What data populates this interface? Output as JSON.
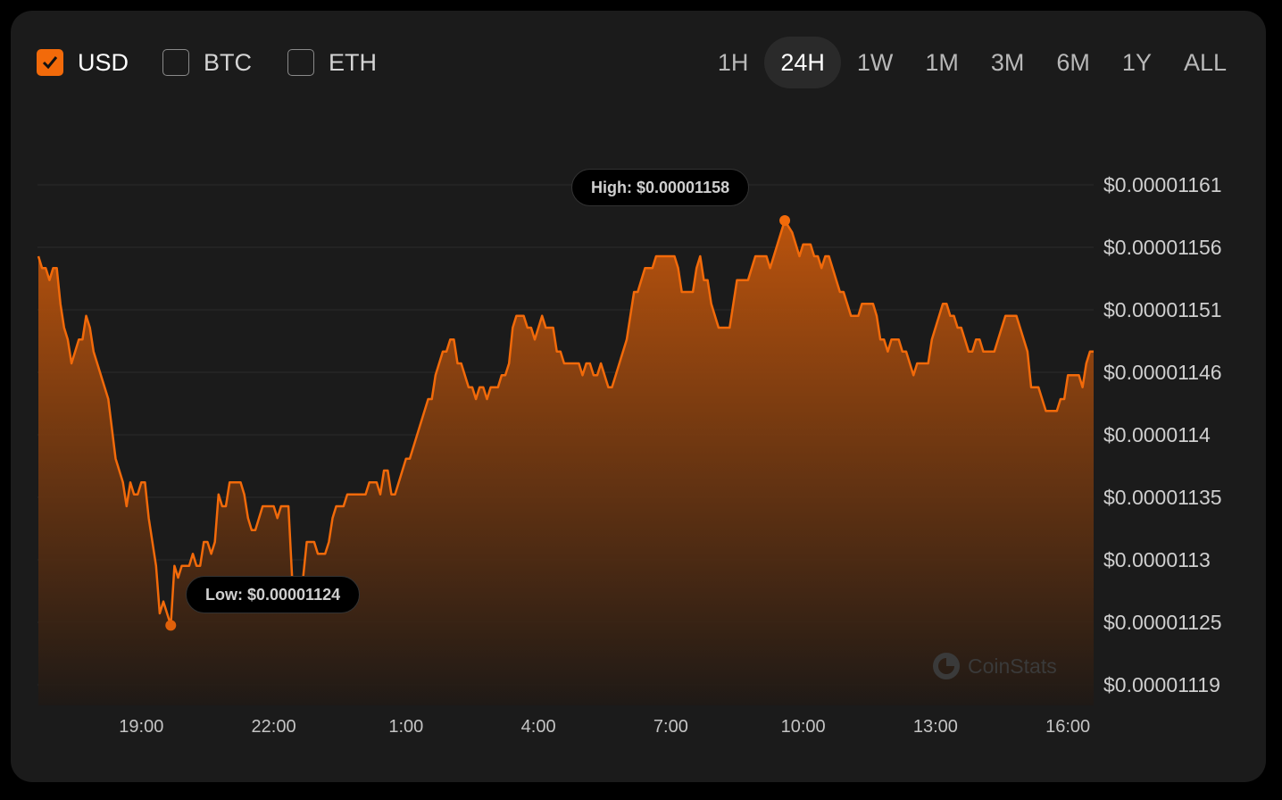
{
  "currencies": [
    {
      "label": "USD",
      "checked": true
    },
    {
      "label": "BTC",
      "checked": false
    },
    {
      "label": "ETH",
      "checked": false
    }
  ],
  "ranges": [
    {
      "label": "1H"
    },
    {
      "label": "24H",
      "active": true
    },
    {
      "label": "1W"
    },
    {
      "label": "1M"
    },
    {
      "label": "3M"
    },
    {
      "label": "6M"
    },
    {
      "label": "1Y"
    },
    {
      "label": "ALL"
    }
  ],
  "colors": {
    "accent": "#f26a0a",
    "background": "#1b1b1b",
    "page": "#000000"
  },
  "watermark": "CoinStats",
  "chart_data": {
    "type": "area",
    "ylim": [
      1.119e-05,
      1.161e-05
    ],
    "y_ticks": [
      "$0.00001161",
      "$0.00001156",
      "$0.00001151",
      "$0.00001146",
      "$0.0000114",
      "$0.00001135",
      "$0.0000113",
      "$0.00001125",
      "$0.00001119"
    ],
    "x_ticks": [
      "19:00",
      "22:00",
      "1:00",
      "4:00",
      "7:00",
      "10:00",
      "13:00",
      "16:00"
    ],
    "grid": true,
    "high": {
      "label": "High: $0.00001158",
      "time": "9:35",
      "value": 1.158e-05
    },
    "low": {
      "label": "Low: $0.00001124",
      "time": "19:40",
      "value": 1.124e-05
    },
    "series": [
      {
        "points": [
          [
            "16:40",
            1.155e-05
          ],
          [
            "16:45",
            1.154e-05
          ],
          [
            "16:50",
            1.154e-05
          ],
          [
            "16:55",
            1.153e-05
          ],
          [
            "17:00",
            1.154e-05
          ],
          [
            "17:05",
            1.154e-05
          ],
          [
            "17:10",
            1.151e-05
          ],
          [
            "17:15",
            1.149e-05
          ],
          [
            "17:20",
            1.148e-05
          ],
          [
            "17:25",
            1.146e-05
          ],
          [
            "17:35",
            1.148e-05
          ],
          [
            "17:40",
            1.148e-05
          ],
          [
            "17:45",
            1.15e-05
          ],
          [
            "17:50",
            1.149e-05
          ],
          [
            "17:55",
            1.147e-05
          ],
          [
            "18:15",
            1.143e-05
          ],
          [
            "18:25",
            1.138e-05
          ],
          [
            "18:35",
            1.136e-05
          ],
          [
            "18:40",
            1.134e-05
          ],
          [
            "18:45",
            1.136e-05
          ],
          [
            "18:50",
            1.135e-05
          ],
          [
            "18:55",
            1.135e-05
          ],
          [
            "19:00",
            1.136e-05
          ],
          [
            "19:05",
            1.136e-05
          ],
          [
            "19:10",
            1.133e-05
          ],
          [
            "19:20",
            1.129e-05
          ],
          [
            "19:25",
            1.125e-05
          ],
          [
            "19:30",
            1.126e-05
          ],
          [
            "19:40",
            1.124e-05
          ],
          [
            "19:45",
            1.129e-05
          ],
          [
            "19:50",
            1.128e-05
          ],
          [
            "19:55",
            1.129e-05
          ],
          [
            "20:05",
            1.129e-05
          ],
          [
            "20:10",
            1.13e-05
          ],
          [
            "20:15",
            1.129e-05
          ],
          [
            "20:20",
            1.129e-05
          ],
          [
            "20:25",
            1.131e-05
          ],
          [
            "20:30",
            1.131e-05
          ],
          [
            "20:35",
            1.13e-05
          ],
          [
            "20:40",
            1.131e-05
          ],
          [
            "20:45",
            1.135e-05
          ],
          [
            "20:50",
            1.134e-05
          ],
          [
            "20:55",
            1.134e-05
          ],
          [
            "21:00",
            1.136e-05
          ],
          [
            "21:15",
            1.136e-05
          ],
          [
            "21:20",
            1.135e-05
          ],
          [
            "21:25",
            1.133e-05
          ],
          [
            "21:30",
            1.132e-05
          ],
          [
            "21:35",
            1.132e-05
          ],
          [
            "21:45",
            1.134e-05
          ],
          [
            "22:00",
            1.134e-05
          ],
          [
            "22:05",
            1.133e-05
          ],
          [
            "22:10",
            1.134e-05
          ],
          [
            "22:20",
            1.134e-05
          ],
          [
            "22:25",
            1.128e-05
          ],
          [
            "22:40",
            1.128e-05
          ],
          [
            "22:45",
            1.131e-05
          ],
          [
            "22:55",
            1.131e-05
          ],
          [
            "23:00",
            1.13e-05
          ],
          [
            "23:10",
            1.13e-05
          ],
          [
            "23:15",
            1.131e-05
          ],
          [
            "23:20",
            1.133e-05
          ],
          [
            "23:25",
            1.134e-05
          ],
          [
            "23:35",
            1.134e-05
          ],
          [
            "23:40",
            1.135e-05
          ],
          [
            "0:05",
            1.135e-05
          ],
          [
            "0:10",
            1.136e-05
          ],
          [
            "0:20",
            1.136e-05
          ],
          [
            "0:25",
            1.135e-05
          ],
          [
            "0:30",
            1.137e-05
          ],
          [
            "0:35",
            1.137e-05
          ],
          [
            "0:40",
            1.135e-05
          ],
          [
            "0:45",
            1.135e-05
          ],
          [
            "1:00",
            1.138e-05
          ],
          [
            "1:05",
            1.138e-05
          ],
          [
            "1:30",
            1.143e-05
          ],
          [
            "1:35",
            1.143e-05
          ],
          [
            "1:40",
            1.145e-05
          ],
          [
            "1:50",
            1.147e-05
          ],
          [
            "1:55",
            1.147e-05
          ],
          [
            "2:00",
            1.148e-05
          ],
          [
            "2:05",
            1.148e-05
          ],
          [
            "2:10",
            1.146e-05
          ],
          [
            "2:15",
            1.146e-05
          ],
          [
            "2:25",
            1.144e-05
          ],
          [
            "2:30",
            1.144e-05
          ],
          [
            "2:35",
            1.143e-05
          ],
          [
            "2:40",
            1.144e-05
          ],
          [
            "2:45",
            1.144e-05
          ],
          [
            "2:50",
            1.143e-05
          ],
          [
            "2:55",
            1.144e-05
          ],
          [
            "3:05",
            1.144e-05
          ],
          [
            "3:10",
            1.145e-05
          ],
          [
            "3:15",
            1.145e-05
          ],
          [
            "3:20",
            1.146e-05
          ],
          [
            "3:25",
            1.149e-05
          ],
          [
            "3:30",
            1.15e-05
          ],
          [
            "3:40",
            1.15e-05
          ],
          [
            "3:45",
            1.149e-05
          ],
          [
            "3:50",
            1.149e-05
          ],
          [
            "3:55",
            1.148e-05
          ],
          [
            "4:05",
            1.15e-05
          ],
          [
            "4:10",
            1.149e-05
          ],
          [
            "4:20",
            1.149e-05
          ],
          [
            "4:25",
            1.147e-05
          ],
          [
            "4:30",
            1.147e-05
          ],
          [
            "4:35",
            1.146e-05
          ],
          [
            "4:55",
            1.146e-05
          ],
          [
            "5:00",
            1.145e-05
          ],
          [
            "5:05",
            1.146e-05
          ],
          [
            "5:10",
            1.146e-05
          ],
          [
            "5:15",
            1.145e-05
          ],
          [
            "5:20",
            1.145e-05
          ],
          [
            "5:25",
            1.146e-05
          ],
          [
            "5:35",
            1.144e-05
          ],
          [
            "5:40",
            1.144e-05
          ],
          [
            "6:00",
            1.148e-05
          ],
          [
            "6:10",
            1.152e-05
          ],
          [
            "6:15",
            1.152e-05
          ],
          [
            "6:25",
            1.154e-05
          ],
          [
            "6:35",
            1.154e-05
          ],
          [
            "6:40",
            1.155e-05
          ],
          [
            "7:05",
            1.155e-05
          ],
          [
            "7:10",
            1.154e-05
          ],
          [
            "7:15",
            1.152e-05
          ],
          [
            "7:30",
            1.152e-05
          ],
          [
            "7:35",
            1.154e-05
          ],
          [
            "7:40",
            1.155e-05
          ],
          [
            "7:45",
            1.153e-05
          ],
          [
            "7:50",
            1.153e-05
          ],
          [
            "7:55",
            1.151e-05
          ],
          [
            "8:05",
            1.149e-05
          ],
          [
            "8:20",
            1.149e-05
          ],
          [
            "8:30",
            1.153e-05
          ],
          [
            "8:45",
            1.153e-05
          ],
          [
            "8:55",
            1.155e-05
          ],
          [
            "9:10",
            1.155e-05
          ],
          [
            "9:15",
            1.154e-05
          ],
          [
            "9:20",
            1.155e-05
          ],
          [
            "9:35",
            1.158e-05
          ],
          [
            "9:45",
            1.157e-05
          ],
          [
            "9:55",
            1.155e-05
          ],
          [
            "10:00",
            1.156e-05
          ],
          [
            "10:10",
            1.156e-05
          ],
          [
            "10:15",
            1.155e-05
          ],
          [
            "10:20",
            1.155e-05
          ],
          [
            "10:25",
            1.154e-05
          ],
          [
            "10:30",
            1.155e-05
          ],
          [
            "10:35",
            1.155e-05
          ],
          [
            "10:50",
            1.152e-05
          ],
          [
            "10:55",
            1.152e-05
          ],
          [
            "11:05",
            1.15e-05
          ],
          [
            "11:15",
            1.15e-05
          ],
          [
            "11:20",
            1.151e-05
          ],
          [
            "11:35",
            1.151e-05
          ],
          [
            "11:40",
            1.15e-05
          ],
          [
            "11:45",
            1.148e-05
          ],
          [
            "11:50",
            1.148e-05
          ],
          [
            "11:55",
            1.147e-05
          ],
          [
            "12:00",
            1.148e-05
          ],
          [
            "12:10",
            1.148e-05
          ],
          [
            "12:15",
            1.147e-05
          ],
          [
            "12:20",
            1.147e-05
          ],
          [
            "12:30",
            1.145e-05
          ],
          [
            "12:35",
            1.146e-05
          ],
          [
            "12:50",
            1.146e-05
          ],
          [
            "12:55",
            1.148e-05
          ],
          [
            "13:10",
            1.151e-05
          ],
          [
            "13:15",
            1.151e-05
          ],
          [
            "13:20",
            1.15e-05
          ],
          [
            "13:25",
            1.15e-05
          ],
          [
            "13:30",
            1.149e-05
          ],
          [
            "13:35",
            1.149e-05
          ],
          [
            "13:45",
            1.147e-05
          ],
          [
            "13:50",
            1.147e-05
          ],
          [
            "13:55",
            1.148e-05
          ],
          [
            "14:00",
            1.148e-05
          ],
          [
            "14:05",
            1.147e-05
          ],
          [
            "14:20",
            1.147e-05
          ],
          [
            "14:35",
            1.15e-05
          ],
          [
            "14:50",
            1.15e-05
          ],
          [
            "15:05",
            1.147e-05
          ],
          [
            "15:10",
            1.144e-05
          ],
          [
            "15:20",
            1.144e-05
          ],
          [
            "15:30",
            1.142e-05
          ],
          [
            "15:45",
            1.142e-05
          ],
          [
            "15:50",
            1.143e-05
          ],
          [
            "15:55",
            1.143e-05
          ],
          [
            "16:00",
            1.145e-05
          ],
          [
            "16:15",
            1.145e-05
          ],
          [
            "16:20",
            1.144e-05
          ],
          [
            "16:25",
            1.146e-05
          ],
          [
            "16:30",
            1.147e-05
          ],
          [
            "16:35",
            1.147e-05
          ]
        ]
      }
    ]
  }
}
